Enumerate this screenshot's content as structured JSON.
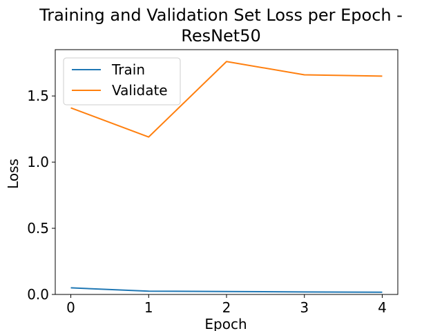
{
  "chart_data": {
    "type": "line",
    "title_line1": "Training and Validation Set Loss per Epoch -",
    "title_line2": "ResNet50",
    "xlabel": "Epoch",
    "ylabel": "Loss",
    "x": [
      0,
      1,
      2,
      3,
      4
    ],
    "xlim": [
      -0.2,
      4.2
    ],
    "ylim": [
      0.0,
      1.85
    ],
    "xticks": [
      0,
      1,
      2,
      3,
      4
    ],
    "yticks": [
      0.0,
      0.5,
      1.0,
      1.5
    ],
    "xtick_labels": [
      "0",
      "1",
      "2",
      "3",
      "4"
    ],
    "ytick_labels": [
      "0.0",
      "0.5",
      "1.0",
      "1.5"
    ],
    "grid": false,
    "legend_position": "top-left",
    "series": [
      {
        "name": "Train",
        "color": "#1f77b4",
        "values": [
          0.05,
          0.025,
          0.022,
          0.019,
          0.017
        ]
      },
      {
        "name": "Validate",
        "color": "#ff7f0e",
        "values": [
          1.41,
          1.19,
          1.76,
          1.66,
          1.65
        ]
      }
    ]
  }
}
